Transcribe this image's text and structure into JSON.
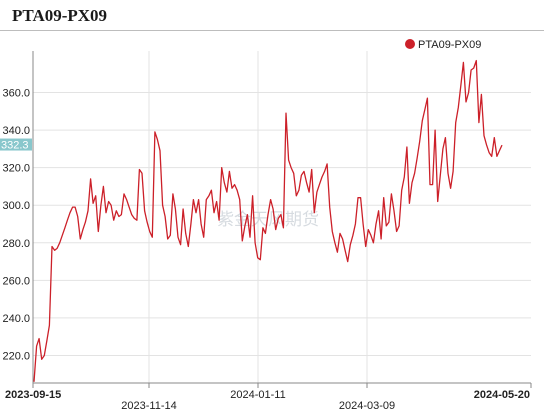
{
  "title": "PTA09-PX09",
  "watermark": "紫金天风期货",
  "colors": {
    "line": "#cc2029",
    "grid": "#e3e3e3",
    "axis": "#888888",
    "last_value_bg": "#89c7cc"
  },
  "chart_data": {
    "type": "line",
    "title": "PTA09-PX09",
    "xlabel": "",
    "ylabel": "",
    "ylim": [
      200,
      380
    ],
    "y_ticks": [
      "220.0",
      "240.0",
      "260.0",
      "280.0",
      "300.0",
      "320.0",
      "340.0",
      "360.0"
    ],
    "x_ticks": [
      {
        "label": "2023-09-15",
        "row": 1,
        "bold": true
      },
      {
        "label": "2023-11-14",
        "row": 2,
        "bold": false
      },
      {
        "label": "2024-01-11",
        "row": 1,
        "bold": false
      },
      {
        "label": "2024-03-09",
        "row": 2,
        "bold": false
      },
      {
        "label": "2024-05-20",
        "row": 1,
        "bold": true
      }
    ],
    "last_value_label": "332.3",
    "legend": {
      "position": "top-right"
    },
    "series": [
      {
        "name": "PTA09-PX09",
        "x_range": [
          "2023-09-15",
          "2024-05-20"
        ],
        "values": [
          206,
          225,
          229,
          218,
          220,
          228,
          236,
          278,
          276,
          277,
          280,
          284,
          288,
          292,
          296,
          299,
          299,
          294,
          282,
          287,
          291,
          297,
          314,
          301,
          305,
          286,
          300,
          310,
          296,
          302,
          300,
          292,
          297,
          294,
          295,
          306,
          303,
          299,
          295,
          293,
          292,
          319,
          317,
          297,
          291,
          286,
          283,
          339,
          335,
          329,
          300,
          294,
          282,
          284,
          306,
          298,
          283,
          279,
          298,
          285,
          278,
          290,
          303,
          296,
          303,
          290,
          283,
          303,
          305,
          308,
          296,
          302,
          292,
          320,
          312,
          307,
          318,
          309,
          311,
          308,
          303,
          281,
          289,
          295,
          283,
          305,
          280,
          272,
          271,
          288,
          285,
          295,
          303,
          298,
          287,
          293,
          295,
          288,
          349,
          324,
          320,
          317,
          305,
          308,
          316,
          318,
          312,
          307,
          319,
          296,
          307,
          311,
          315,
          318,
          322,
          299,
          286,
          280,
          275,
          285,
          282,
          276,
          270,
          279,
          284,
          290,
          304,
          304,
          290,
          278,
          287,
          284,
          280,
          290,
          297,
          282,
          304,
          289,
          291,
          306,
          297,
          286,
          289,
          308,
          315,
          331,
          301,
          312,
          317,
          325,
          334,
          345,
          351,
          357,
          311,
          311,
          340,
          302,
          316,
          330,
          336,
          317,
          309,
          318,
          344,
          352,
          364,
          376,
          355,
          360,
          372,
          373,
          377,
          344,
          359,
          337,
          332,
          328,
          326,
          336,
          326,
          329,
          332
        ]
      }
    ]
  }
}
